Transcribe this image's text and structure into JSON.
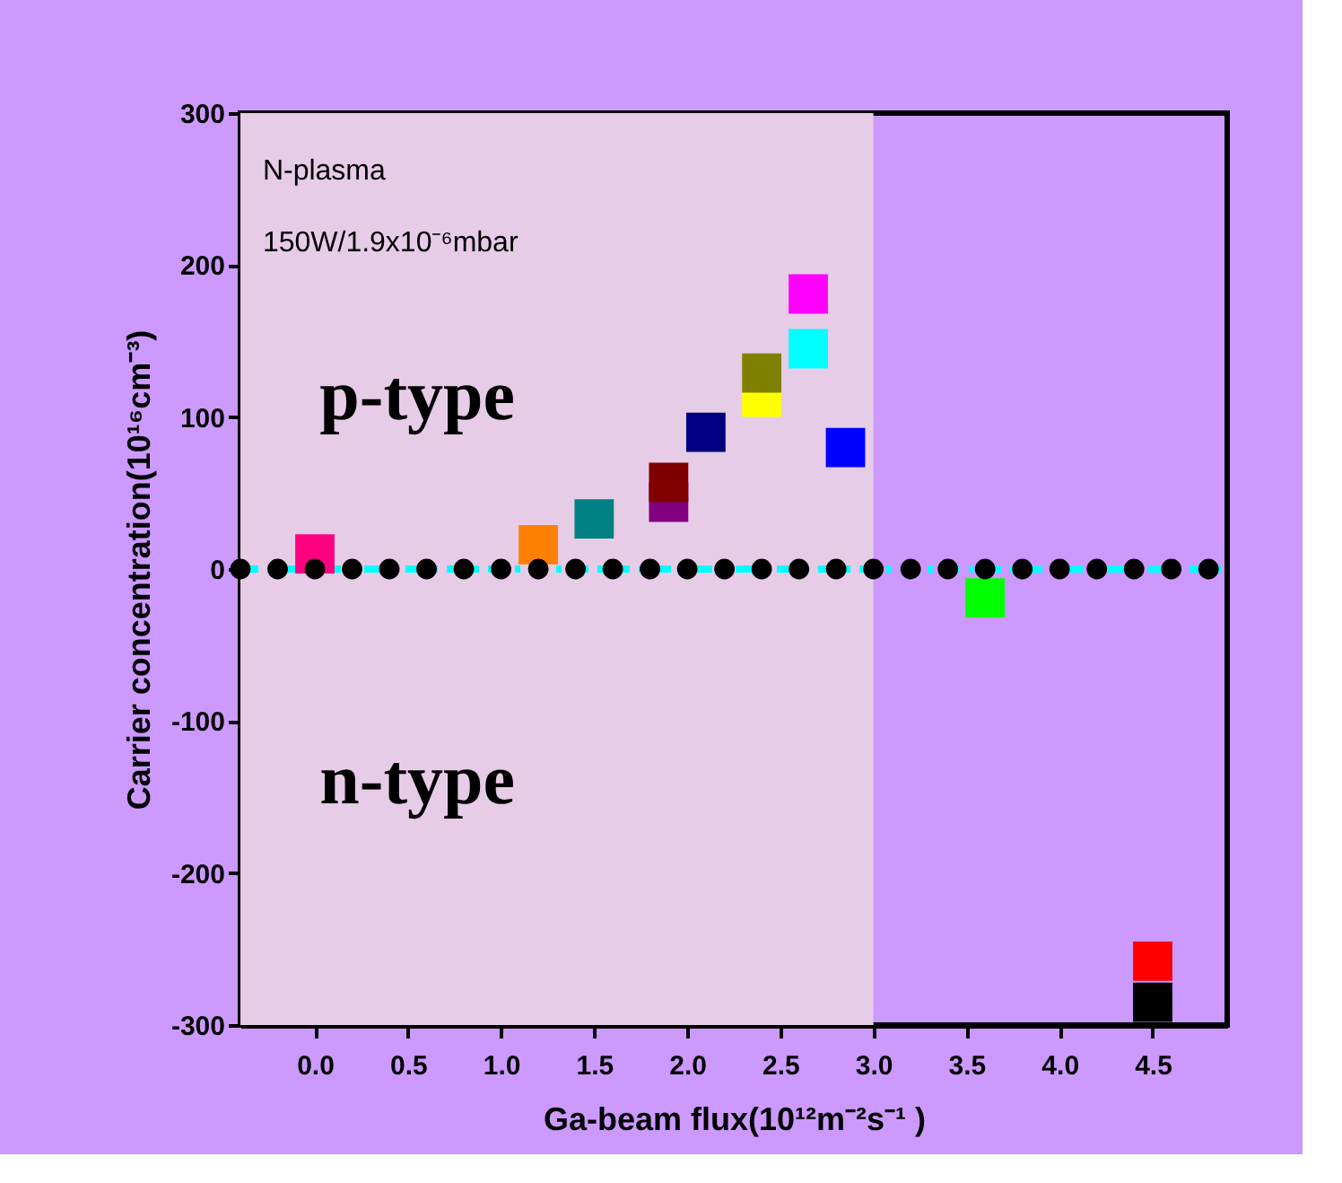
{
  "chart_data": {
    "type": "scatter",
    "xlabel": "Ga-beam flux(10¹²m⁻²s⁻¹ )",
    "ylabel": "Carrier concentration(10¹⁶cm⁻³)",
    "annotations": [
      "N-plasma",
      "150W/1.9x10⁻⁶mbar",
      "p-type",
      "n-type"
    ],
    "xlim": [
      -0.4,
      4.9
    ],
    "xticks": [
      {
        "value": 0,
        "label": "0.0"
      },
      {
        "value": 0.5,
        "label": "0.5"
      },
      {
        "value": 1,
        "label": "1.0"
      },
      {
        "value": 1.5,
        "label": "1.5"
      },
      {
        "value": 2,
        "label": "2.0"
      },
      {
        "value": 2.5,
        "label": "2.5"
      },
      {
        "value": 3,
        "label": "3.0"
      },
      {
        "value": 3.5,
        "label": "3.5"
      },
      {
        "value": 4,
        "label": "4.0"
      },
      {
        "value": 4.5,
        "label": "4.5"
      }
    ],
    "ylim": [
      -300,
      300
    ],
    "yticks": [
      -300,
      -200,
      -100,
      0,
      100,
      200,
      300
    ],
    "bands": [
      {
        "axis": "x",
        "from": -0.4,
        "to": 3.0,
        "color": "#e6cce6"
      }
    ],
    "ref_lines": [
      {
        "axis": "y",
        "value": 0,
        "color": "#00ffff",
        "line_style": "dashed"
      }
    ],
    "series": [
      {
        "marker": "square",
        "x": [
          0.0,
          1.2,
          1.5,
          1.9,
          1.9,
          2.1,
          2.4,
          2.4,
          2.65,
          2.65,
          2.85,
          3.6,
          4.5,
          4.5
        ],
        "values": [
          10,
          16,
          33,
          44,
          57,
          90,
          113,
          129,
          145,
          181,
          80,
          -19,
          -258,
          -285
        ],
        "colors": [
          "#ff0080",
          "#ff8000",
          "#008080",
          "#800080",
          "#800000",
          "#000080",
          "#ffff00",
          "#808000",
          "#00ffff",
          "#ff00ff",
          "#0000ff",
          "#00ff00",
          "#ff0000",
          "#000000"
        ]
      },
      {
        "marker": "circle",
        "color": "#000000",
        "x": [
          -0.4,
          -0.2,
          0.0,
          0.2,
          0.4,
          0.6,
          0.8,
          1.0,
          1.2,
          1.4,
          1.6,
          1.8,
          2.0,
          2.2,
          2.4,
          2.6,
          2.8,
          3.0,
          3.2,
          3.4,
          3.6,
          3.8,
          4.0,
          4.2,
          4.4,
          4.6,
          4.8
        ],
        "values": [
          0,
          0,
          0,
          0,
          0,
          0,
          0,
          0,
          0,
          0,
          0,
          0,
          0,
          0,
          0,
          0,
          0,
          0,
          0,
          0,
          0,
          0,
          0,
          0,
          0,
          0,
          0
        ]
      }
    ]
  }
}
